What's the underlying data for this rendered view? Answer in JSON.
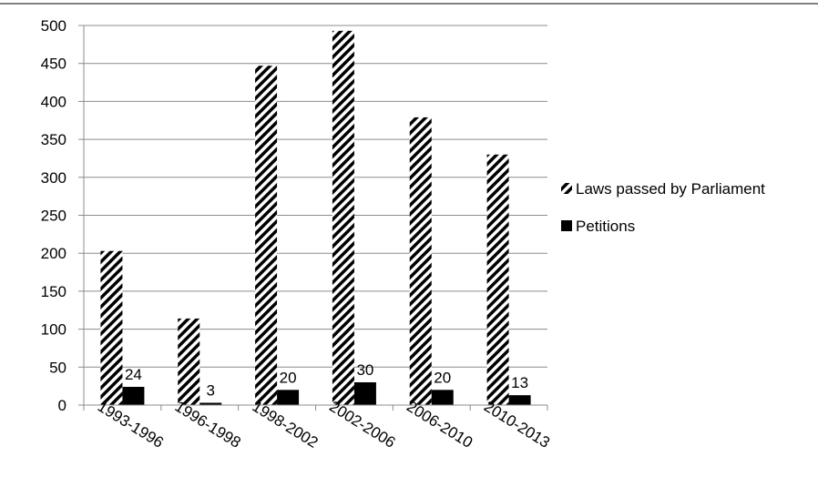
{
  "chart_data": {
    "type": "bar",
    "categories": [
      "1993-1996",
      "1996-1998",
      "1998-2002",
      "2002-2006",
      "2006-2010",
      "2010-2013"
    ],
    "series": [
      {
        "name": "Laws passed by Parliament",
        "values": [
          203,
          114,
          447,
          493,
          379,
          330
        ],
        "pattern": "diagonal-stripes",
        "color": "#000000"
      },
      {
        "name": "Petitions",
        "values": [
          24,
          3,
          20,
          30,
          20,
          13
        ],
        "pattern": "solid",
        "color": "#000000",
        "data_labels": [
          "24",
          "3",
          "20",
          "30",
          "20",
          "13"
        ]
      }
    ],
    "y_ticks": [
      "0",
      "50",
      "100",
      "150",
      "200",
      "250",
      "300",
      "350",
      "400",
      "450",
      "500"
    ],
    "ylim": [
      0,
      500
    ],
    "grid": true,
    "legend": "right"
  }
}
